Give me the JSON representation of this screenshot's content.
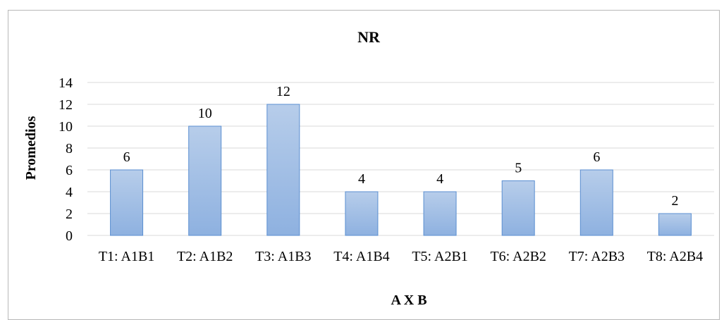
{
  "chart_data": {
    "type": "bar",
    "title": "NR",
    "xlabel": "A X B",
    "ylabel": "Promedios",
    "categories": [
      "T1: A1B1",
      "T2: A1B2",
      "T3: A1B3",
      "T4: A1B4",
      "T5: A2B1",
      "T6: A2B2",
      "T7: A2B3",
      "T8: A2B4"
    ],
    "values": [
      6,
      10,
      12,
      4,
      4,
      5,
      6,
      2
    ],
    "ylim": [
      0,
      14
    ],
    "yticks": [
      0,
      2,
      4,
      6,
      8,
      10,
      12,
      14
    ],
    "grid": true,
    "legend": "none",
    "colors": {
      "bar_top": "#b7cdea",
      "bar_bottom": "#8eb1e0",
      "bar_edge": "#5b8fd1",
      "grid": "#d9d9d9"
    }
  }
}
